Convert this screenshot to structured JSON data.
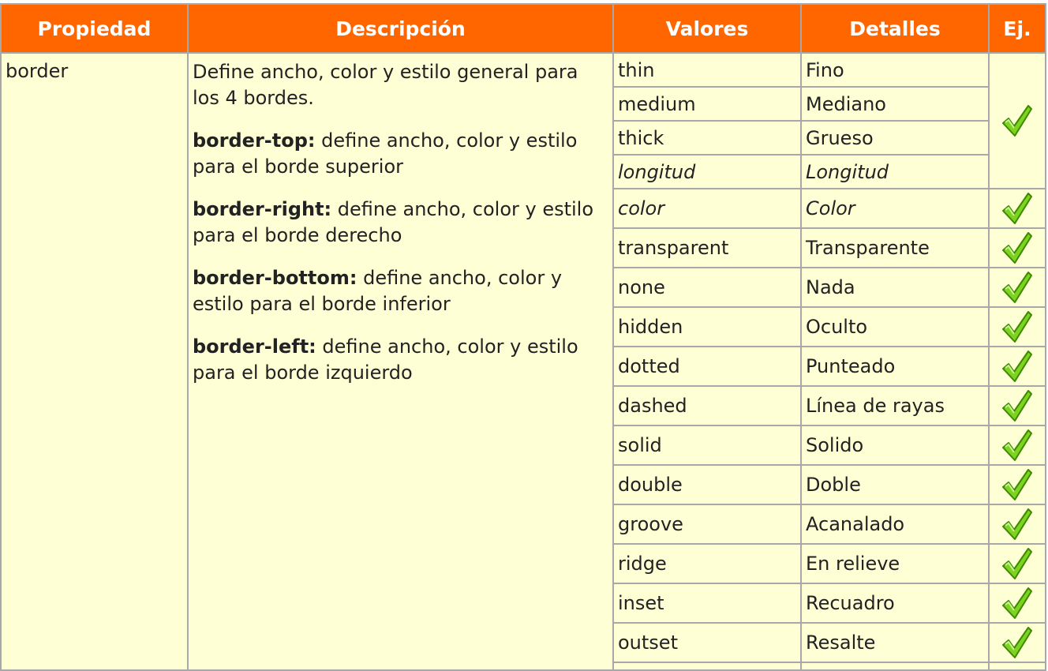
{
  "headers": [
    "Propiedad",
    "Descripción",
    "Valores",
    "Detalles",
    "Ej."
  ],
  "property": "border",
  "description": [
    {
      "bold": "",
      "text": "Define ancho, color y estilo general para los 4 bordes."
    },
    {
      "bold": "border-top:",
      "text": " define ancho, color y estilo para el borde superior"
    },
    {
      "bold": "border-right:",
      "text": " define ancho, color y estilo para el borde derecho"
    },
    {
      "bold": "border-bottom:",
      "text": " define ancho, color y estilo para el borde inferior"
    },
    {
      "bold": "border-left:",
      "text": " define ancho, color y estilo para el borde izquierdo"
    }
  ],
  "rows": [
    {
      "value": "thin",
      "detail": "Fino"
    },
    {
      "value": "medium",
      "detail": "Mediano"
    },
    {
      "value": "thick",
      "detail": "Grueso"
    },
    {
      "value": "longitud",
      "detail": "Longitud"
    },
    {
      "value": "color",
      "detail": "Color"
    },
    {
      "value": "transparent",
      "detail": "Transparente"
    },
    {
      "value": "none",
      "detail": "Nada"
    },
    {
      "value": "hidden",
      "detail": "Oculto"
    },
    {
      "value": "dotted",
      "detail": "Punteado"
    },
    {
      "value": "dashed",
      "detail": "Línea de rayas"
    },
    {
      "value": "solid",
      "detail": "Solido"
    },
    {
      "value": "double",
      "detail": "Doble"
    },
    {
      "value": "groove",
      "detail": "Acanalado"
    },
    {
      "value": "ridge",
      "detail": "En relieve"
    },
    {
      "value": "inset",
      "detail": "Recuadro"
    },
    {
      "value": "outset",
      "detail": "Resalte"
    }
  ],
  "icons": {
    "example": "checkmark-icon"
  },
  "colors": {
    "header_bg": "#ff6600",
    "header_text": "#ffffff",
    "cell_bg": "#ffffd6",
    "border": "#a8a8a8",
    "check_fill": "#7ed321",
    "check_stroke": "#3c8a00"
  }
}
